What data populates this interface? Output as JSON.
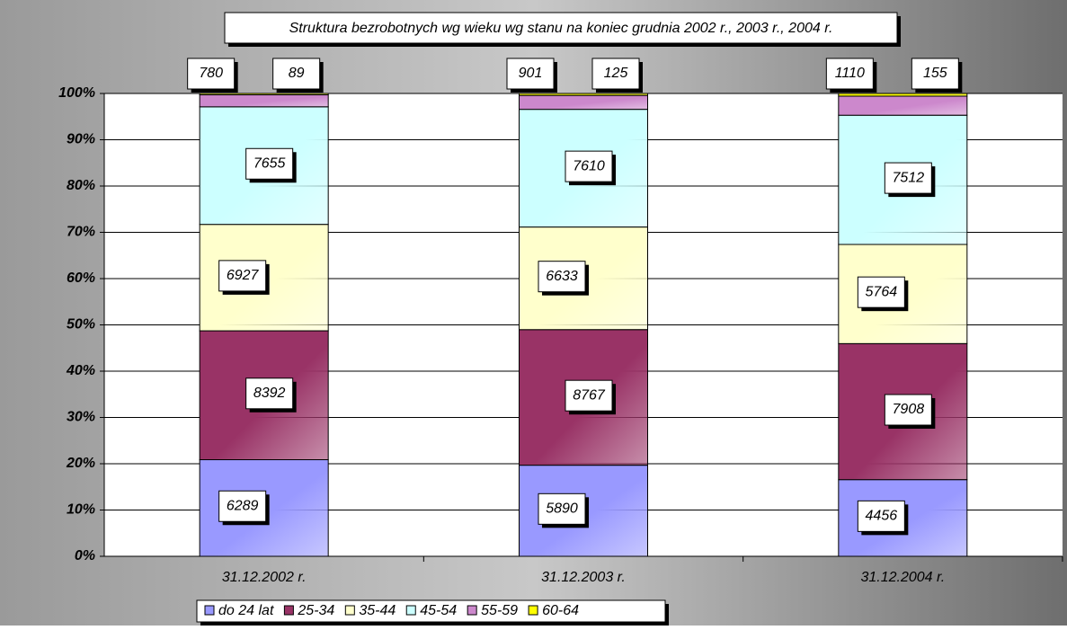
{
  "chart_data": {
    "type": "bar",
    "stacked": "percent",
    "title": "Struktura bezrobotnych wg wieku wg stanu na koniec grudnia 2002 r., 2003 r., 2004 r.",
    "categories": [
      "31.12.2002 r.",
      "31.12.2003 r.",
      "31.12.2004 r."
    ],
    "series": [
      {
        "name": "do 24 lat",
        "color": "#9999ff",
        "values": [
          6289,
          5890,
          4456
        ]
      },
      {
        "name": "25-34",
        "color": "#993366",
        "values": [
          8392,
          8767,
          7908
        ]
      },
      {
        "name": "35-44",
        "color": "#ffffcc",
        "values": [
          6927,
          6633,
          5764
        ]
      },
      {
        "name": "45-54",
        "color": "#ccffff",
        "values": [
          7655,
          7610,
          7512
        ]
      },
      {
        "name": "55-59",
        "color": "#cc88cc",
        "values": [
          780,
          901,
          1110
        ]
      },
      {
        "name": "60-64",
        "color": "#ffff00",
        "values": [
          89,
          125,
          155
        ]
      }
    ],
    "ylim": [
      0,
      100
    ],
    "yticks": [
      {
        "value": 0,
        "label": "0%"
      },
      {
        "value": 10,
        "label": "10%"
      },
      {
        "value": 20,
        "label": "20%"
      },
      {
        "value": 30,
        "label": "30%"
      },
      {
        "value": 40,
        "label": "40%"
      },
      {
        "value": 50,
        "label": "50%"
      },
      {
        "value": 60,
        "label": "60%"
      },
      {
        "value": 70,
        "label": "70%"
      },
      {
        "value": 80,
        "label": "80%"
      },
      {
        "value": 90,
        "label": "90%"
      },
      {
        "value": 100,
        "label": "100%"
      }
    ],
    "grid": true,
    "legend": "bottom"
  }
}
